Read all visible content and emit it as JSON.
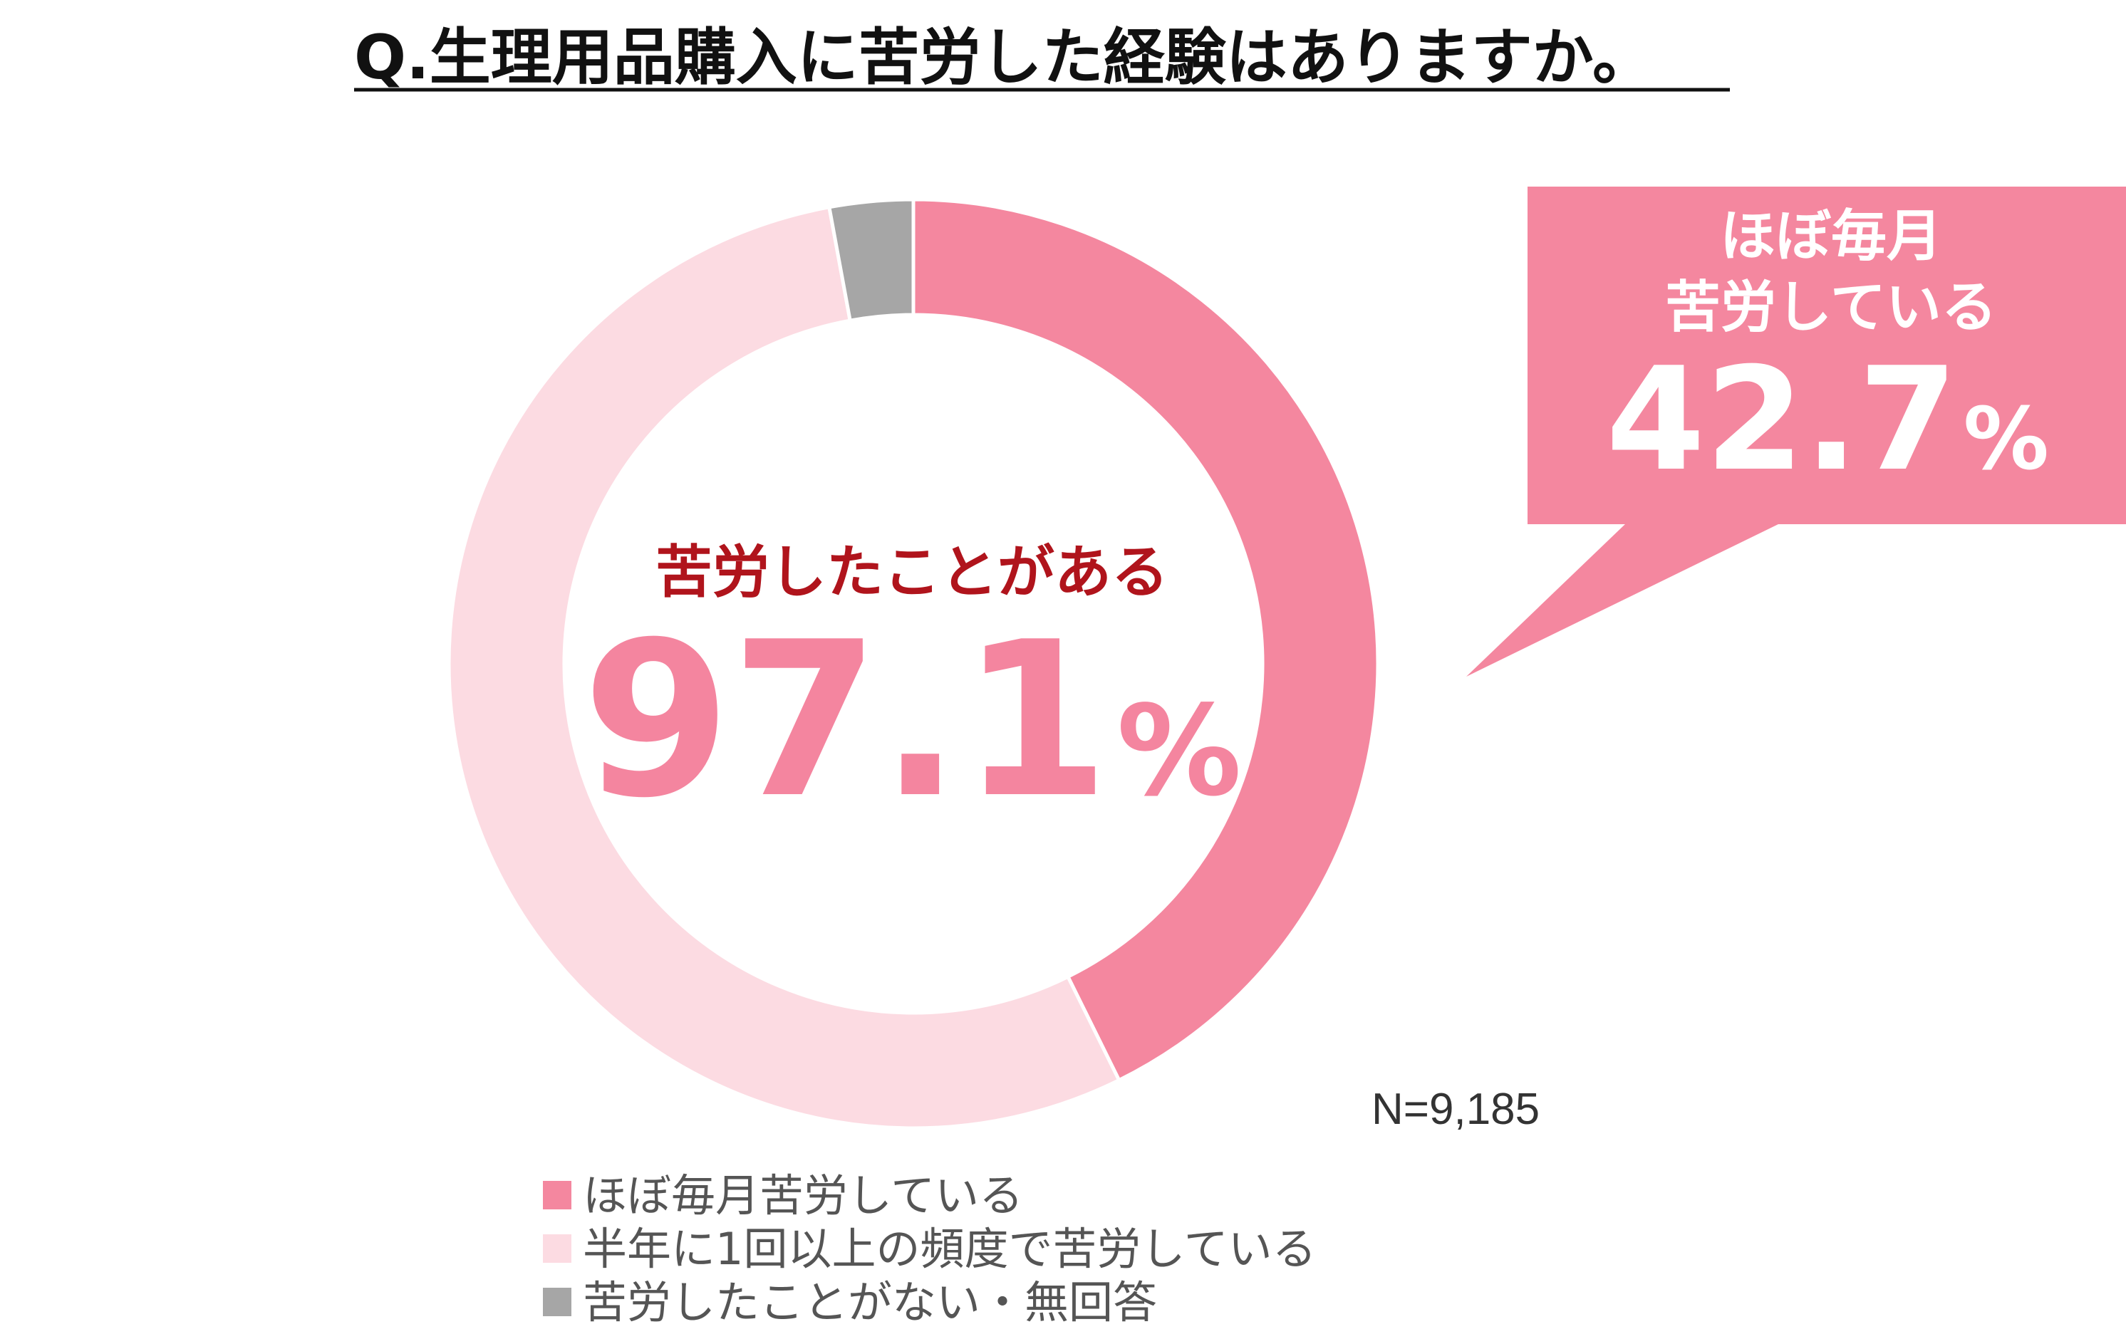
{
  "chart_data": {
    "type": "pie",
    "title": "Q.生理用品購入に苦労した経験はありますか。",
    "series": [
      {
        "name": "ほぼ毎月苦労している",
        "value": 42.7,
        "color": "#f4879f"
      },
      {
        "name": "半年に1回以上の頻度で苦労している",
        "value": 54.4,
        "color": "#fcdbe2"
      },
      {
        "name": "苦労したことがない・無回答",
        "value": 2.9,
        "color": "#a6a6a6"
      }
    ],
    "center": {
      "label": "苦労したことがある",
      "number": "97.1",
      "unit": "%"
    },
    "callout": {
      "line1": "ほぼ毎月",
      "line2": "苦労している",
      "number": "42.7",
      "unit": "%",
      "color": "#f4879f"
    },
    "n_label": "N=9,185",
    "legend_position": "bottom"
  },
  "colors": {
    "title_underline": "#111111",
    "center_label": "#b0141c",
    "center_number": "#f4859f"
  }
}
